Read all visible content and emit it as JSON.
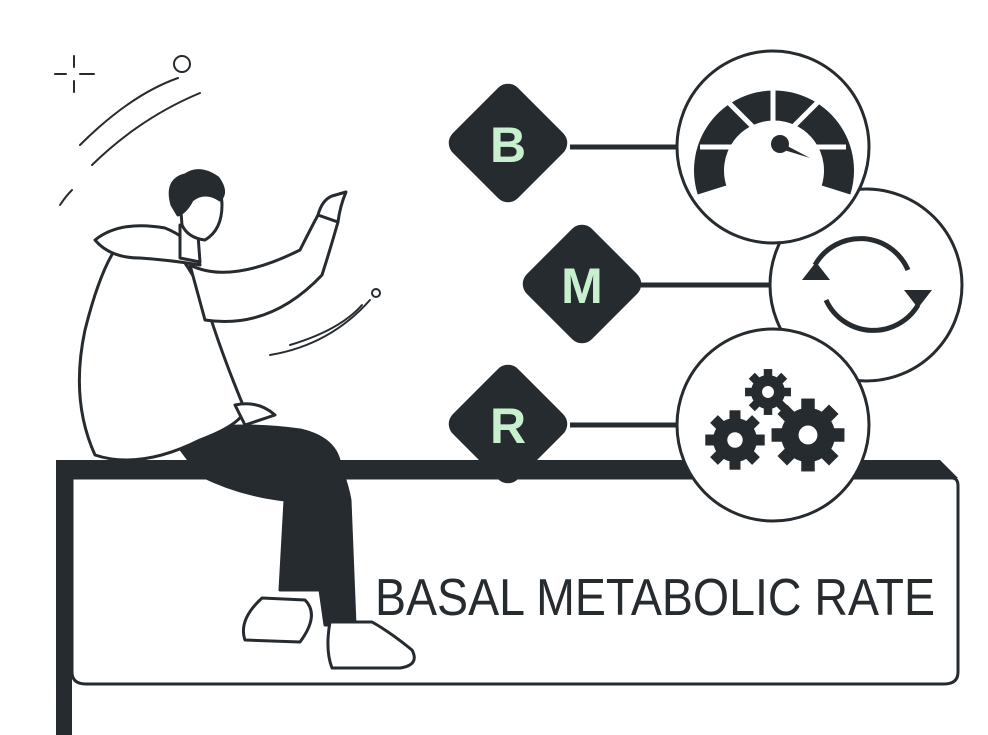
{
  "colors": {
    "ink": "#262b30",
    "accent": "#c8f0cf",
    "paper": "#ffffff"
  },
  "acronym": [
    {
      "letter": "B",
      "icon": "speedometer-icon"
    },
    {
      "letter": "M",
      "icon": "cycle-arrows-icon"
    },
    {
      "letter": "R",
      "icon": "gears-icon"
    }
  ],
  "banner": {
    "title": "BASAL METABOLIC RATE"
  }
}
